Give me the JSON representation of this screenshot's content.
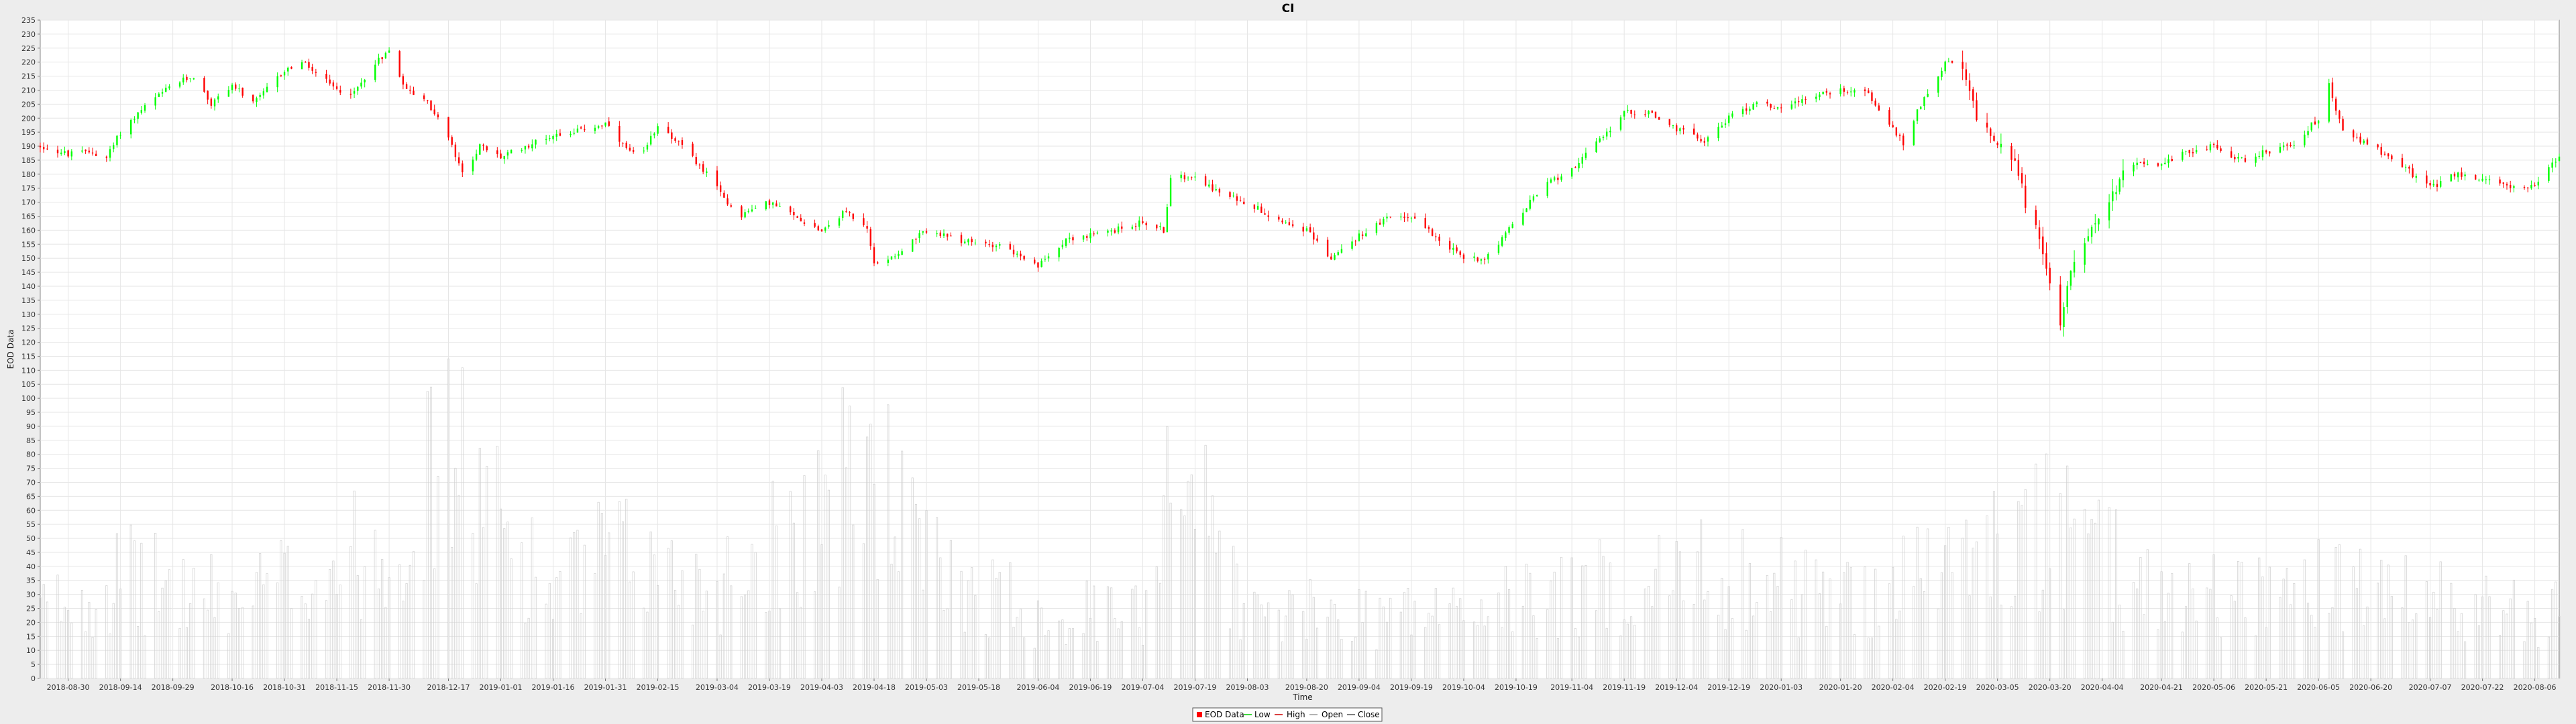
{
  "chart_data": {
    "type": "candlestick",
    "title": "CI",
    "xlabel": "Time",
    "ylabel": "EOD Data",
    "ylim": [
      0,
      235
    ],
    "y_ticks": [
      0,
      5,
      10,
      15,
      20,
      25,
      30,
      35,
      40,
      45,
      50,
      55,
      60,
      65,
      70,
      75,
      80,
      85,
      90,
      95,
      100,
      105,
      110,
      115,
      120,
      125,
      130,
      135,
      140,
      145,
      150,
      155,
      160,
      165,
      170,
      175,
      180,
      185,
      190,
      195,
      200,
      205,
      210,
      215,
      220,
      225,
      230,
      235
    ],
    "x_range": [
      "2018-08-22",
      "2020-08-13"
    ],
    "x_ticks": [
      "2018-08-30",
      "2018-09-14",
      "2018-09-29",
      "2018-10-16",
      "2018-10-31",
      "2018-11-15",
      "2018-11-30",
      "2018-12-17",
      "2019-01-01",
      "2019-01-16",
      "2019-01-31",
      "2019-02-15",
      "2019-03-04",
      "2019-03-19",
      "2019-04-03",
      "2019-04-18",
      "2019-05-03",
      "2019-05-18",
      "2019-06-04",
      "2019-06-19",
      "2019-07-04",
      "2019-07-19",
      "2019-08-03",
      "2019-08-20",
      "2019-09-04",
      "2019-09-19",
      "2019-10-04",
      "2019-10-19",
      "2019-11-04",
      "2019-11-19",
      "2019-12-04",
      "2019-12-19",
      "2020-01-03",
      "2020-01-20",
      "2020-02-04",
      "2020-02-19",
      "2020-03-05",
      "2020-03-20",
      "2020-04-04",
      "2020-04-21",
      "2020-05-06",
      "2020-05-21",
      "2020-06-05",
      "2020-06-20",
      "2020-07-07",
      "2020-07-22",
      "2020-08-06"
    ],
    "grid": true,
    "legend_position": "bottom-center",
    "legend": [
      "EOD Data",
      "Low",
      "High",
      "Open",
      "Close"
    ],
    "colors": {
      "up": "#00ff00",
      "down": "#ff0000",
      "volume": "#d0d0d0",
      "grid": "#e6e6e6",
      "plot_bg": "#ffffff"
    },
    "price_anchors": [
      [
        "2018-08-22",
        190
      ],
      [
        "2018-08-30",
        187
      ],
      [
        "2018-09-05",
        188
      ],
      [
        "2018-09-10",
        186
      ],
      [
        "2018-09-14",
        195
      ],
      [
        "2018-09-20",
        203
      ],
      [
        "2018-09-29",
        212
      ],
      [
        "2018-10-05",
        215
      ],
      [
        "2018-10-10",
        205
      ],
      [
        "2018-10-16",
        212
      ],
      [
        "2018-10-22",
        205
      ],
      [
        "2018-10-31",
        217
      ],
      [
        "2018-11-05",
        220
      ],
      [
        "2018-11-10",
        215
      ],
      [
        "2018-11-15",
        210
      ],
      [
        "2018-11-20",
        209
      ],
      [
        "2018-11-26",
        220
      ],
      [
        "2018-11-30",
        224
      ],
      [
        "2018-12-05",
        210
      ],
      [
        "2018-12-10",
        207
      ],
      [
        "2018-12-14",
        200
      ],
      [
        "2018-12-17",
        193
      ],
      [
        "2018-12-21",
        180
      ],
      [
        "2018-12-26",
        190
      ],
      [
        "2019-01-01",
        186
      ],
      [
        "2019-01-08",
        190
      ],
      [
        "2019-01-16",
        194
      ],
      [
        "2019-01-25",
        196
      ],
      [
        "2019-01-31",
        198
      ],
      [
        "2019-02-05",
        190
      ],
      [
        "2019-02-10",
        185
      ],
      [
        "2019-02-15",
        198
      ],
      [
        "2019-02-22",
        190
      ],
      [
        "2019-03-01",
        180
      ],
      [
        "2019-03-04",
        175
      ],
      [
        "2019-03-10",
        165
      ],
      [
        "2019-03-19",
        170
      ],
      [
        "2019-03-26",
        165
      ],
      [
        "2019-04-03",
        160
      ],
      [
        "2019-04-10",
        167
      ],
      [
        "2019-04-16",
        160
      ],
      [
        "2019-04-18",
        148
      ],
      [
        "2019-04-25",
        152
      ],
      [
        "2019-05-03",
        160
      ],
      [
        "2019-05-10",
        157
      ],
      [
        "2019-05-18",
        155
      ],
      [
        "2019-05-25",
        155
      ],
      [
        "2019-06-01",
        148
      ],
      [
        "2019-06-04",
        147
      ],
      [
        "2019-06-12",
        157
      ],
      [
        "2019-06-19",
        158
      ],
      [
        "2019-06-26",
        160
      ],
      [
        "2019-07-04",
        163
      ],
      [
        "2019-07-10",
        160
      ],
      [
        "2019-07-12",
        178
      ],
      [
        "2019-07-19",
        180
      ],
      [
        "2019-07-26",
        173
      ],
      [
        "2019-08-03",
        170
      ],
      [
        "2019-08-10",
        165
      ],
      [
        "2019-08-20",
        160
      ],
      [
        "2019-08-27",
        150
      ],
      [
        "2019-09-04",
        158
      ],
      [
        "2019-09-12",
        164
      ],
      [
        "2019-09-19",
        165
      ],
      [
        "2019-09-26",
        158
      ],
      [
        "2019-10-04",
        150
      ],
      [
        "2019-10-10",
        150
      ],
      [
        "2019-10-19",
        163
      ],
      [
        "2019-10-26",
        175
      ],
      [
        "2019-11-04",
        182
      ],
      [
        "2019-11-12",
        192
      ],
      [
        "2019-11-19",
        202
      ],
      [
        "2019-11-26",
        202
      ],
      [
        "2019-12-04",
        196
      ],
      [
        "2019-12-12",
        192
      ],
      [
        "2019-12-19",
        200
      ],
      [
        "2019-12-26",
        205
      ],
      [
        "2020-01-03",
        204
      ],
      [
        "2020-01-12",
        208
      ],
      [
        "2020-01-20",
        210
      ],
      [
        "2020-01-27",
        210
      ],
      [
        "2020-02-04",
        196
      ],
      [
        "2020-02-07",
        191
      ],
      [
        "2020-02-12",
        205
      ],
      [
        "2020-02-19",
        220
      ],
      [
        "2020-02-24",
        217
      ],
      [
        "2020-02-28",
        200
      ],
      [
        "2020-03-05",
        192
      ],
      [
        "2020-03-10",
        185
      ],
      [
        "2020-03-13",
        170
      ],
      [
        "2020-03-16",
        160
      ],
      [
        "2020-03-20",
        140
      ],
      [
        "2020-03-23",
        128
      ],
      [
        "2020-03-26",
        148
      ],
      [
        "2020-04-04",
        165
      ],
      [
        "2020-04-10",
        180
      ],
      [
        "2020-04-14",
        185
      ],
      [
        "2020-04-21",
        183
      ],
      [
        "2020-04-28",
        188
      ],
      [
        "2020-05-06",
        190
      ],
      [
        "2020-05-14",
        185
      ],
      [
        "2020-05-21",
        188
      ],
      [
        "2020-05-28",
        190
      ],
      [
        "2020-06-05",
        200
      ],
      [
        "2020-06-08",
        212
      ],
      [
        "2020-06-12",
        195
      ],
      [
        "2020-06-20",
        190
      ],
      [
        "2020-06-27",
        185
      ],
      [
        "2020-07-07",
        175
      ],
      [
        "2020-07-14",
        180
      ],
      [
        "2020-07-22",
        178
      ],
      [
        "2020-07-29",
        176
      ],
      [
        "2020-08-06",
        175
      ],
      [
        "2020-08-13",
        187
      ]
    ],
    "volume_anchors": [
      [
        "2018-08-22",
        30
      ],
      [
        "2018-09-14",
        45
      ],
      [
        "2018-10-16",
        34
      ],
      [
        "2018-11-30",
        60
      ],
      [
        "2018-12-17",
        100
      ],
      [
        "2018-12-26",
        80
      ],
      [
        "2019-01-16",
        38
      ],
      [
        "2019-01-31",
        55
      ],
      [
        "2019-03-04",
        42
      ],
      [
        "2019-04-18",
        95
      ],
      [
        "2019-05-03",
        50
      ],
      [
        "2019-06-04",
        30
      ],
      [
        "2019-07-04",
        28
      ],
      [
        "2019-07-12",
        110
      ],
      [
        "2019-08-03",
        28
      ],
      [
        "2019-10-04",
        30
      ],
      [
        "2019-11-04",
        38
      ],
      [
        "2019-12-19",
        48
      ],
      [
        "2020-01-20",
        35
      ],
      [
        "2020-02-28",
        55
      ],
      [
        "2020-03-20",
        65
      ],
      [
        "2020-04-21",
        38
      ],
      [
        "2020-06-05",
        40
      ],
      [
        "2020-08-13",
        28
      ]
    ]
  }
}
